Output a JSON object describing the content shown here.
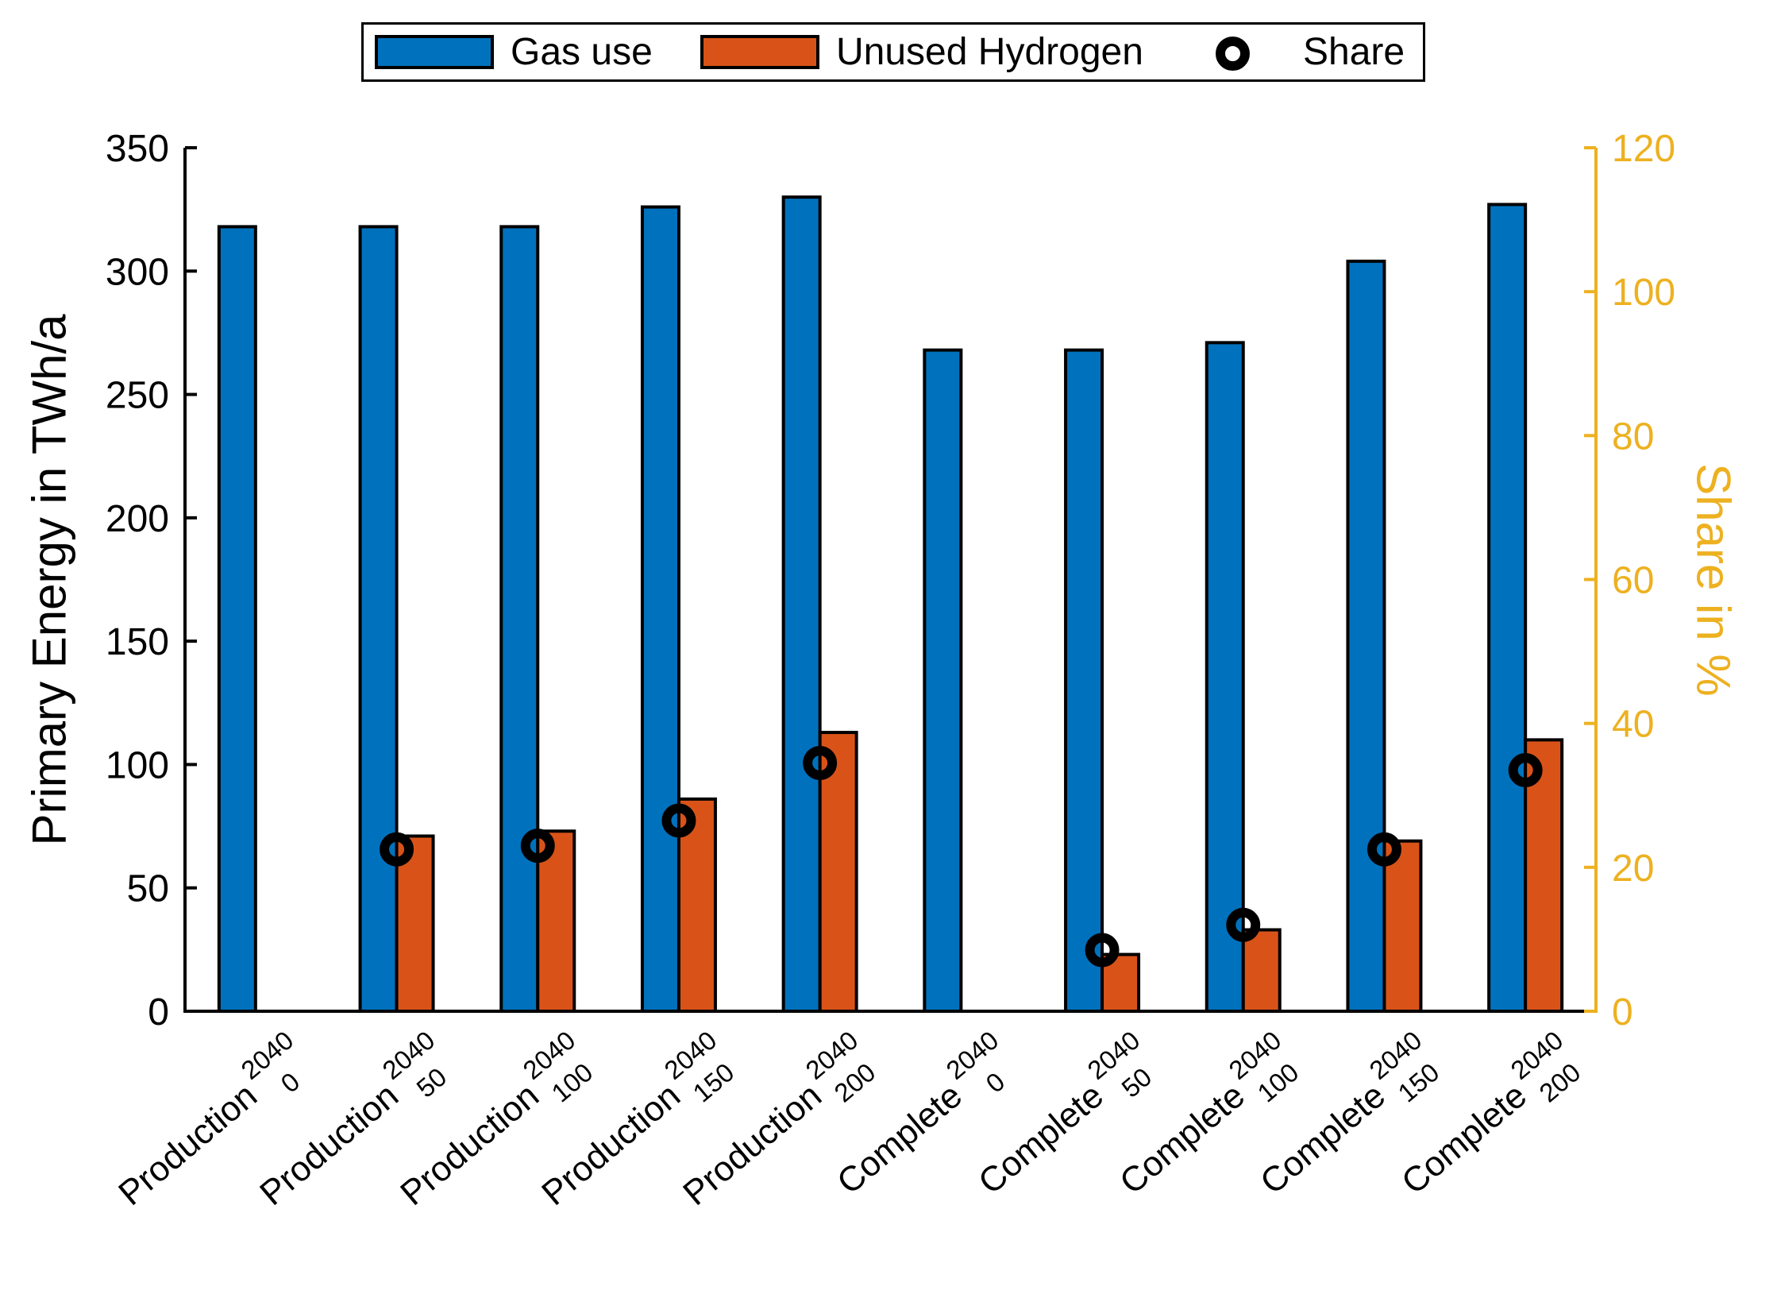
{
  "chart_data": {
    "type": "bar",
    "title": "",
    "categories": [
      {
        "label": "Production",
        "sup": "2040",
        "sub": "0"
      },
      {
        "label": "Production",
        "sup": "2040",
        "sub": "50"
      },
      {
        "label": "Production",
        "sup": "2040",
        "sub": "100"
      },
      {
        "label": "Production",
        "sup": "2040",
        "sub": "150"
      },
      {
        "label": "Production",
        "sup": "2040",
        "sub": "200"
      },
      {
        "label": "Complete",
        "sup": "2040",
        "sub": "0"
      },
      {
        "label": "Complete",
        "sup": "2040",
        "sub": "50"
      },
      {
        "label": "Complete",
        "sup": "2040",
        "sub": "100"
      },
      {
        "label": "Complete",
        "sup": "2040",
        "sub": "150"
      },
      {
        "label": "Complete",
        "sup": "2040",
        "sub": "200"
      }
    ],
    "series": [
      {
        "name": "Gas use",
        "type": "bar",
        "axis": "left",
        "color": "#0072BD",
        "values": [
          318,
          318,
          318,
          326,
          330,
          268,
          268,
          271,
          304,
          327
        ]
      },
      {
        "name": "Unused Hydrogen",
        "type": "bar",
        "axis": "left",
        "color": "#D95319",
        "values": [
          0,
          71,
          73,
          86,
          113,
          0,
          23,
          33,
          69,
          110
        ]
      },
      {
        "name": "Share",
        "type": "scatter-ring",
        "axis": "right",
        "color": "#000000",
        "values": [
          null,
          22.5,
          23,
          26.5,
          34.5,
          null,
          8.5,
          12,
          22.5,
          33.5
        ]
      }
    ],
    "left_axis": {
      "label": "Primary Energy in TWh/a",
      "min": 0,
      "max": 350,
      "ticks": [
        0,
        50,
        100,
        150,
        200,
        250,
        300,
        350
      ],
      "color": "#000000"
    },
    "right_axis": {
      "label": "Share in %",
      "min": 0,
      "max": 120,
      "ticks": [
        0,
        20,
        40,
        60,
        80,
        100,
        120
      ],
      "color": "#EDB120"
    },
    "legend": {
      "position": "top",
      "items": [
        {
          "label": "Gas use",
          "marker": "rect",
          "swatch": "#0072BD"
        },
        {
          "label": "Unused Hydrogen",
          "marker": "rect",
          "swatch": "#D95319"
        },
        {
          "label": "Share",
          "marker": "ring",
          "swatch": "#000000"
        }
      ]
    },
    "grid": false,
    "bar_edge_color": "#000000"
  }
}
